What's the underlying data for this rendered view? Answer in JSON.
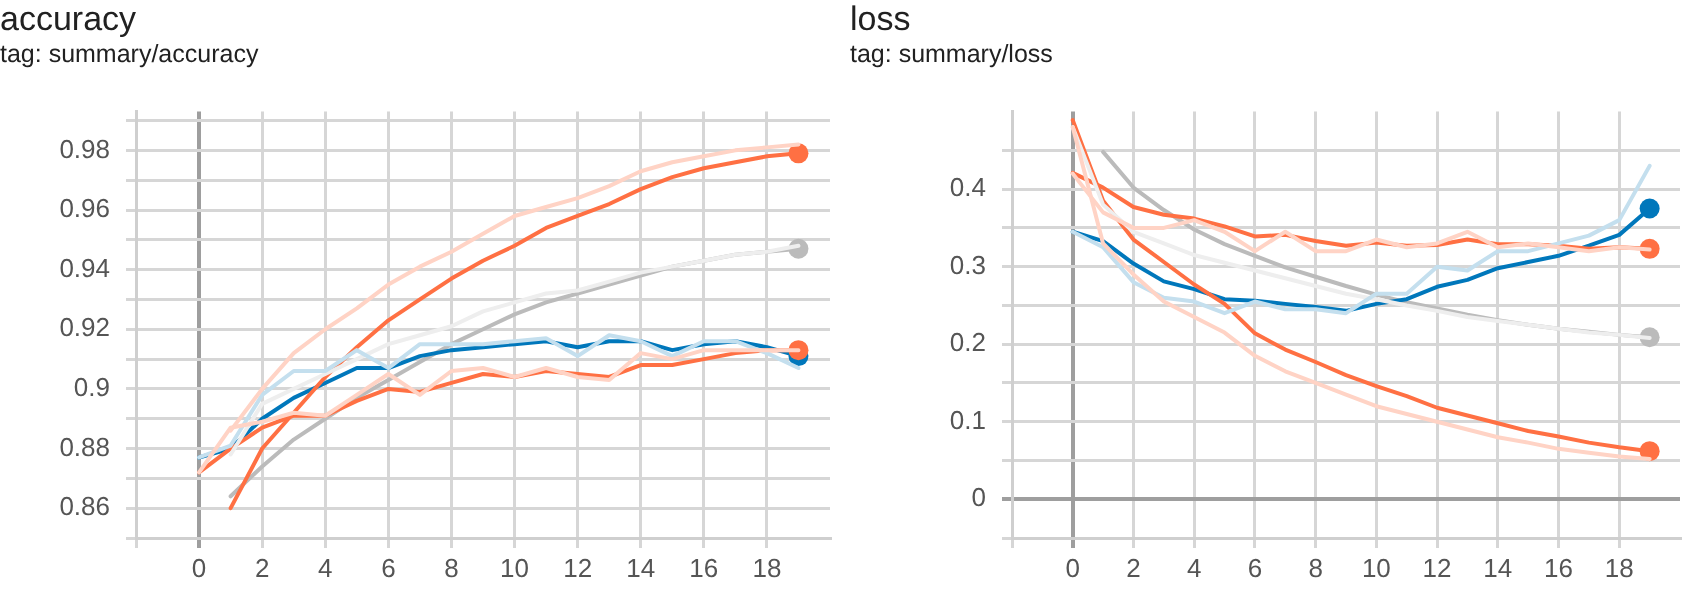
{
  "chart_data": [
    {
      "type": "line",
      "title": "accuracy",
      "subtitle": "tag: summary/accuracy",
      "x": [
        0,
        1,
        2,
        3,
        4,
        5,
        6,
        7,
        8,
        9,
        10,
        11,
        12,
        13,
        14,
        15,
        16,
        17,
        18,
        19
      ],
      "xlim": [
        -2,
        20
      ],
      "xticks": [
        {
          "value": -2,
          "label": null
        },
        0,
        2,
        4,
        6,
        8,
        10,
        12,
        14,
        16,
        18
      ],
      "ylim": [
        0.85,
        0.993
      ],
      "yticks": [
        {
          "value": 0.85,
          "label": null
        },
        0.86,
        {
          "value": 0.87,
          "label": null
        },
        0.88,
        {
          "value": 0.89,
          "label": null
        },
        0.9,
        {
          "value": 0.91,
          "label": null
        },
        0.92,
        {
          "value": 0.93,
          "label": null
        },
        0.94,
        {
          "value": 0.95,
          "label": null
        },
        0.96,
        {
          "value": 0.97,
          "label": null
        },
        0.98,
        {
          "value": 0.99,
          "label": null
        }
      ],
      "grid": true,
      "legend": false,
      "series": [
        {
          "color": "#ffd3c5",
          "marker": "none",
          "values": [
            null,
            0.886,
            0.9,
            0.912,
            0.92,
            0.927,
            0.935,
            0.941,
            0.946,
            0.952,
            0.958,
            0.961,
            0.964,
            0.968,
            0.973,
            0.976,
            0.978,
            0.98,
            0.981,
            0.982
          ]
        },
        {
          "color": "#ffd3c5",
          "marker": "none",
          "values": [
            0.872,
            0.887,
            0.889,
            0.892,
            0.891,
            0.898,
            0.905,
            0.898,
            0.906,
            0.907,
            0.904,
            0.907,
            0.904,
            0.903,
            0.912,
            0.91,
            0.913,
            0.913,
            0.913,
            0.913
          ]
        },
        {
          "color": "#c4dfee",
          "marker": "none",
          "values": [
            0.877,
            0.881,
            0.898,
            0.906,
            0.906,
            0.913,
            0.907,
            0.915,
            0.915,
            0.915,
            0.916,
            0.917,
            0.911,
            0.918,
            0.916,
            0.911,
            0.916,
            0.916,
            0.912,
            0.907
          ]
        },
        {
          "color": "#eeeeee",
          "marker": "none",
          "values": [
            null,
            0.878,
            0.895,
            0.9,
            0.905,
            0.91,
            0.915,
            0.918,
            0.921,
            0.926,
            0.929,
            0.932,
            0.933,
            0.936,
            0.939,
            0.941,
            0.943,
            0.945,
            0.946,
            0.948
          ]
        },
        {
          "color": "#ff7043",
          "values": [
            null,
            0.86,
            0.88,
            0.892,
            0.904,
            0.914,
            0.923,
            0.93,
            0.937,
            0.943,
            0.948,
            0.954,
            0.958,
            0.962,
            0.967,
            0.971,
            0.974,
            0.976,
            0.978,
            0.979
          ]
        },
        {
          "color": "#ff7043",
          "values": [
            0.872,
            0.88,
            0.887,
            0.891,
            0.891,
            0.896,
            0.9,
            0.899,
            0.902,
            0.905,
            0.904,
            0.906,
            0.905,
            0.904,
            0.908,
            0.908,
            0.91,
            0.912,
            0.913,
            0.913
          ]
        },
        {
          "color": "#0077bb",
          "values": [
            0.877,
            0.88,
            0.89,
            0.897,
            0.902,
            0.907,
            0.907,
            0.911,
            0.913,
            0.914,
            0.915,
            0.916,
            0.914,
            0.916,
            0.916,
            0.913,
            0.915,
            0.916,
            0.914,
            0.911
          ]
        },
        {
          "color": "#bbbbbb",
          "values": [
            null,
            0.864,
            0.874,
            0.883,
            0.89,
            0.897,
            0.903,
            0.909,
            0.915,
            0.92,
            0.925,
            0.929,
            0.932,
            0.935,
            0.938,
            0.941,
            0.943,
            0.945,
            0.946,
            0.947
          ]
        }
      ]
    },
    {
      "type": "line",
      "title": "loss",
      "subtitle": "tag: summary/loss",
      "x": [
        0,
        1,
        2,
        3,
        4,
        5,
        6,
        7,
        8,
        9,
        10,
        11,
        12,
        13,
        14,
        15,
        16,
        17,
        18,
        19
      ],
      "xlim": [
        -2,
        20
      ],
      "xticks": [
        {
          "value": -2,
          "label": null
        },
        0,
        2,
        4,
        6,
        8,
        10,
        12,
        14,
        16,
        18
      ],
      "ylim": [
        -0.05,
        0.5
      ],
      "yticks": [
        {
          "value": -0.05,
          "label": null
        },
        0,
        {
          "value": 0.05,
          "label": null
        },
        0.1,
        {
          "value": 0.15,
          "label": null
        },
        0.2,
        {
          "value": 0.25,
          "label": null
        },
        0.3,
        {
          "value": 0.35,
          "label": null
        },
        0.4,
        {
          "value": 0.45,
          "label": null
        }
      ],
      "grid": true,
      "legend": false,
      "series": [
        {
          "color": "#ffd3c5",
          "marker": "none",
          "values": [
            0.48,
            0.33,
            0.29,
            0.255,
            0.235,
            0.215,
            0.185,
            0.165,
            0.15,
            0.135,
            0.12,
            0.11,
            0.1,
            0.09,
            0.08,
            0.073,
            0.065,
            0.06,
            0.055,
            0.052
          ]
        },
        {
          "color": "#ffd3c5",
          "marker": "none",
          "values": [
            0.42,
            0.37,
            0.35,
            0.35,
            0.36,
            0.345,
            0.32,
            0.345,
            0.32,
            0.32,
            0.335,
            0.325,
            0.33,
            0.345,
            0.325,
            0.33,
            0.325,
            0.32,
            0.325,
            0.322
          ]
        },
        {
          "color": "#c4dfee",
          "marker": "none",
          "values": [
            0.345,
            0.325,
            0.28,
            0.26,
            0.255,
            0.24,
            0.255,
            0.245,
            0.245,
            0.24,
            0.265,
            0.265,
            0.3,
            0.295,
            0.32,
            0.32,
            0.33,
            0.34,
            0.36,
            0.43
          ]
        },
        {
          "color": "#eeeeee",
          "marker": "none",
          "values": [
            0.48,
            0.38,
            0.345,
            0.33,
            0.315,
            0.305,
            0.295,
            0.285,
            0.275,
            0.265,
            0.258,
            0.25,
            0.243,
            0.235,
            0.23,
            0.225,
            0.22,
            0.215,
            0.212,
            0.208
          ]
        },
        {
          "color": "#ff7043",
          "values": [
            0.489,
            0.385,
            0.335,
            0.306,
            0.277,
            0.252,
            0.214,
            0.193,
            0.177,
            0.16,
            0.146,
            0.133,
            0.118,
            0.108,
            0.098,
            0.088,
            0.081,
            0.073,
            0.067,
            0.062
          ]
        },
        {
          "color": "#ff7043",
          "values": [
            0.421,
            0.402,
            0.377,
            0.367,
            0.362,
            0.352,
            0.339,
            0.341,
            0.333,
            0.327,
            0.331,
            0.327,
            0.328,
            0.335,
            0.329,
            0.329,
            0.327,
            0.323,
            0.325,
            0.323
          ]
        },
        {
          "color": "#0077bb",
          "values": [
            0.345,
            0.333,
            0.304,
            0.281,
            0.271,
            0.258,
            0.256,
            0.252,
            0.248,
            0.243,
            0.252,
            0.258,
            0.274,
            0.283,
            0.298,
            0.306,
            0.314,
            0.327,
            0.341,
            0.375
          ]
        },
        {
          "color": "#bbbbbb",
          "values": [
            null,
            0.448,
            0.402,
            0.373,
            0.348,
            0.329,
            0.314,
            0.299,
            0.287,
            0.275,
            0.264,
            0.254,
            0.246,
            0.238,
            0.231,
            0.225,
            0.22,
            0.216,
            0.212,
            0.209
          ]
        }
      ]
    }
  ]
}
